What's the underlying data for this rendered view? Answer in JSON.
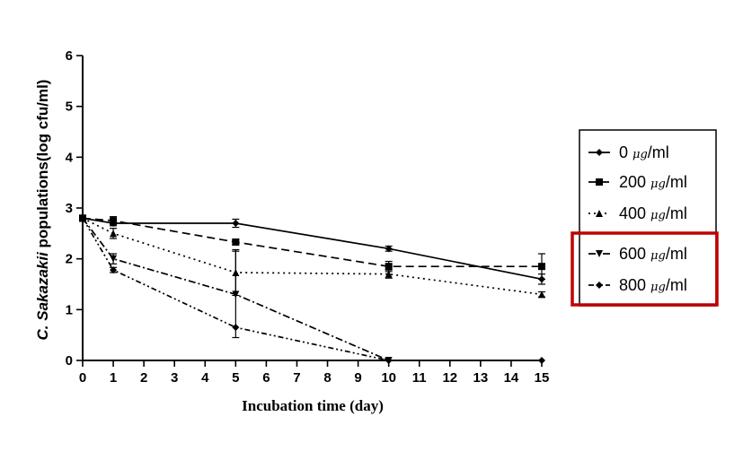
{
  "chart_data": {
    "type": "line",
    "title": "",
    "xlabel": "Incubation time (day)",
    "ylabel_italic": "C. Sakazakii",
    "ylabel_rest": " populations(log cfu/ml)",
    "xlim": [
      0,
      15
    ],
    "ylim": [
      0,
      6
    ],
    "x_ticks": [
      "0",
      "1",
      "2",
      "3",
      "4",
      "5",
      "6",
      "7",
      "8",
      "9",
      "10",
      "11",
      "12",
      "13",
      "14",
      "15"
    ],
    "y_ticks": [
      "0",
      "1",
      "2",
      "3",
      "4",
      "5",
      "6"
    ],
    "grid": false,
    "legend_position": "right",
    "series": [
      {
        "name_num": "0 ",
        "name_unit": "μg",
        "name_tail": "/ml",
        "marker": "diamond",
        "dash": "",
        "x": [
          0,
          1,
          5,
          10,
          15
        ],
        "y": [
          2.8,
          2.7,
          2.7,
          2.2,
          1.6
        ],
        "err": [
          0.05,
          0.05,
          0.08,
          0.05,
          0.1
        ]
      },
      {
        "name_num": "200 ",
        "name_unit": "μg",
        "name_tail": "/ml",
        "marker": "square",
        "dash": "9,5",
        "x": [
          0,
          1,
          5,
          10,
          15
        ],
        "y": [
          2.8,
          2.75,
          2.33,
          1.85,
          1.85
        ],
        "err": [
          0.05,
          0.08,
          0.05,
          0.1,
          0.25
        ]
      },
      {
        "name_num": "400 ",
        "name_unit": "μg",
        "name_tail": "/ml",
        "marker": "triangle",
        "dash": "2,4",
        "x": [
          0,
          1,
          5,
          10,
          15
        ],
        "y": [
          2.8,
          2.5,
          1.73,
          1.7,
          1.3
        ],
        "err": [
          0.05,
          0.1,
          0.45,
          0.08,
          0.05
        ]
      },
      {
        "name_num": "600 ",
        "name_unit": "μg",
        "name_tail": "/ml",
        "marker": "triangle-down",
        "dash": "8,3,2,3",
        "x": [
          0,
          1,
          5,
          10
        ],
        "y": [
          2.8,
          2.0,
          1.3,
          0.0
        ],
        "err": [
          0.05,
          0.1,
          0.85,
          0.0
        ]
      },
      {
        "name_num": "800 ",
        "name_unit": "μg",
        "name_tail": "/ml",
        "marker": "diamond",
        "dash": "6,3,2,3,2,3",
        "x": [
          0,
          1,
          5,
          10,
          15
        ],
        "y": [
          2.8,
          1.78,
          0.65,
          0.0,
          0.0
        ],
        "err": [
          0.05,
          0.05,
          0.0,
          0.0,
          0.0
        ]
      }
    ],
    "highlight_color": "#c00000"
  }
}
